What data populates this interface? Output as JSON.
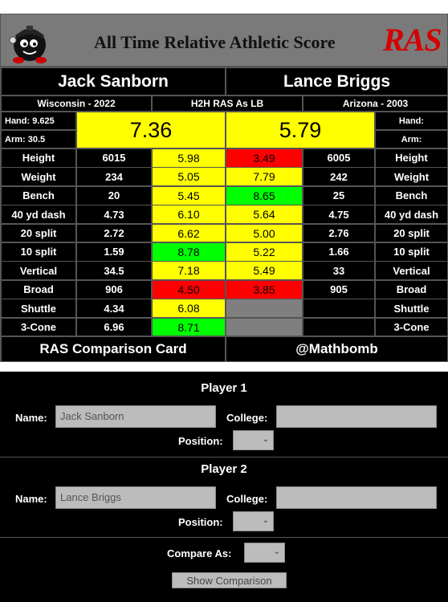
{
  "header": {
    "title": "All Time Relative Athletic Score",
    "logo_text": "RAS"
  },
  "card": {
    "player1": {
      "name": "Jack Sanborn",
      "college_year": "Wisconsin - 2022",
      "hand": "Hand: 9.625",
      "arm": "Arm: 30.5",
      "score": "7.36"
    },
    "player2": {
      "name": "Lance Briggs",
      "college_year": "Arizona - 2003",
      "hand": "Hand:",
      "arm": "Arm:",
      "score": "5.79"
    },
    "compare_label": "H2H RAS As LB",
    "rows": [
      {
        "metric": "Height",
        "p1_val": "6015",
        "p1_score": "5.98",
        "p1_color": "yellow",
        "p2_score": "3.49",
        "p2_color": "red",
        "p2_val": "6005"
      },
      {
        "metric": "Weight",
        "p1_val": "234",
        "p1_score": "5.05",
        "p1_color": "yellow",
        "p2_score": "7.79",
        "p2_color": "yellow",
        "p2_val": "242"
      },
      {
        "metric": "Bench",
        "p1_val": "20",
        "p1_score": "5.45",
        "p1_color": "yellow",
        "p2_score": "8.65",
        "p2_color": "green",
        "p2_val": "25"
      },
      {
        "metric": "40 yd dash",
        "p1_val": "4.73",
        "p1_score": "6.10",
        "p1_color": "yellow",
        "p2_score": "5.64",
        "p2_color": "yellow",
        "p2_val": "4.75"
      },
      {
        "metric": "20 split",
        "p1_val": "2.72",
        "p1_score": "6.62",
        "p1_color": "yellow",
        "p2_score": "5.00",
        "p2_color": "yellow",
        "p2_val": "2.76"
      },
      {
        "metric": "10 split",
        "p1_val": "1.59",
        "p1_score": "8.78",
        "p1_color": "green",
        "p2_score": "5.22",
        "p2_color": "yellow",
        "p2_val": "1.66"
      },
      {
        "metric": "Vertical",
        "p1_val": "34.5",
        "p1_score": "7.18",
        "p1_color": "yellow",
        "p2_score": "5.49",
        "p2_color": "yellow",
        "p2_val": "33"
      },
      {
        "metric": "Broad",
        "p1_val": "906",
        "p1_score": "4.50",
        "p1_color": "red",
        "p2_score": "3.85",
        "p2_color": "red",
        "p2_val": "905"
      },
      {
        "metric": "Shuttle",
        "p1_val": "4.34",
        "p1_score": "6.08",
        "p1_color": "yellow",
        "p2_score": "",
        "p2_color": "gray",
        "p2_val": ""
      },
      {
        "metric": "3-Cone",
        "p1_val": "6.96",
        "p1_score": "8.71",
        "p1_color": "green",
        "p2_score": "",
        "p2_color": "gray",
        "p2_val": ""
      }
    ],
    "footer_left": "RAS Comparison Card",
    "footer_right": "@Mathbomb"
  },
  "form": {
    "player1": {
      "title": "Player 1",
      "name_label": "Name:",
      "name_value": "Jack Sanborn",
      "college_label": "College:",
      "college_value": "",
      "position_label": "Position:",
      "position_value": ""
    },
    "player2": {
      "title": "Player 2",
      "name_label": "Name:",
      "name_value": "Lance Briggs",
      "college_label": "College:",
      "college_value": "",
      "position_label": "Position:",
      "position_value": ""
    },
    "compare_label": "Compare As:",
    "compare_value": "",
    "button_label": "Show Comparison"
  },
  "colors": {
    "yellow": "#ffff00",
    "red": "#ff0000",
    "green": "#00ff00",
    "gray": "#7f7f7f",
    "card_bg": "#000000",
    "logo_red": "#d40000"
  },
  "icons": [
    "bomb-mascot-icon",
    "chevron-down-icon"
  ]
}
